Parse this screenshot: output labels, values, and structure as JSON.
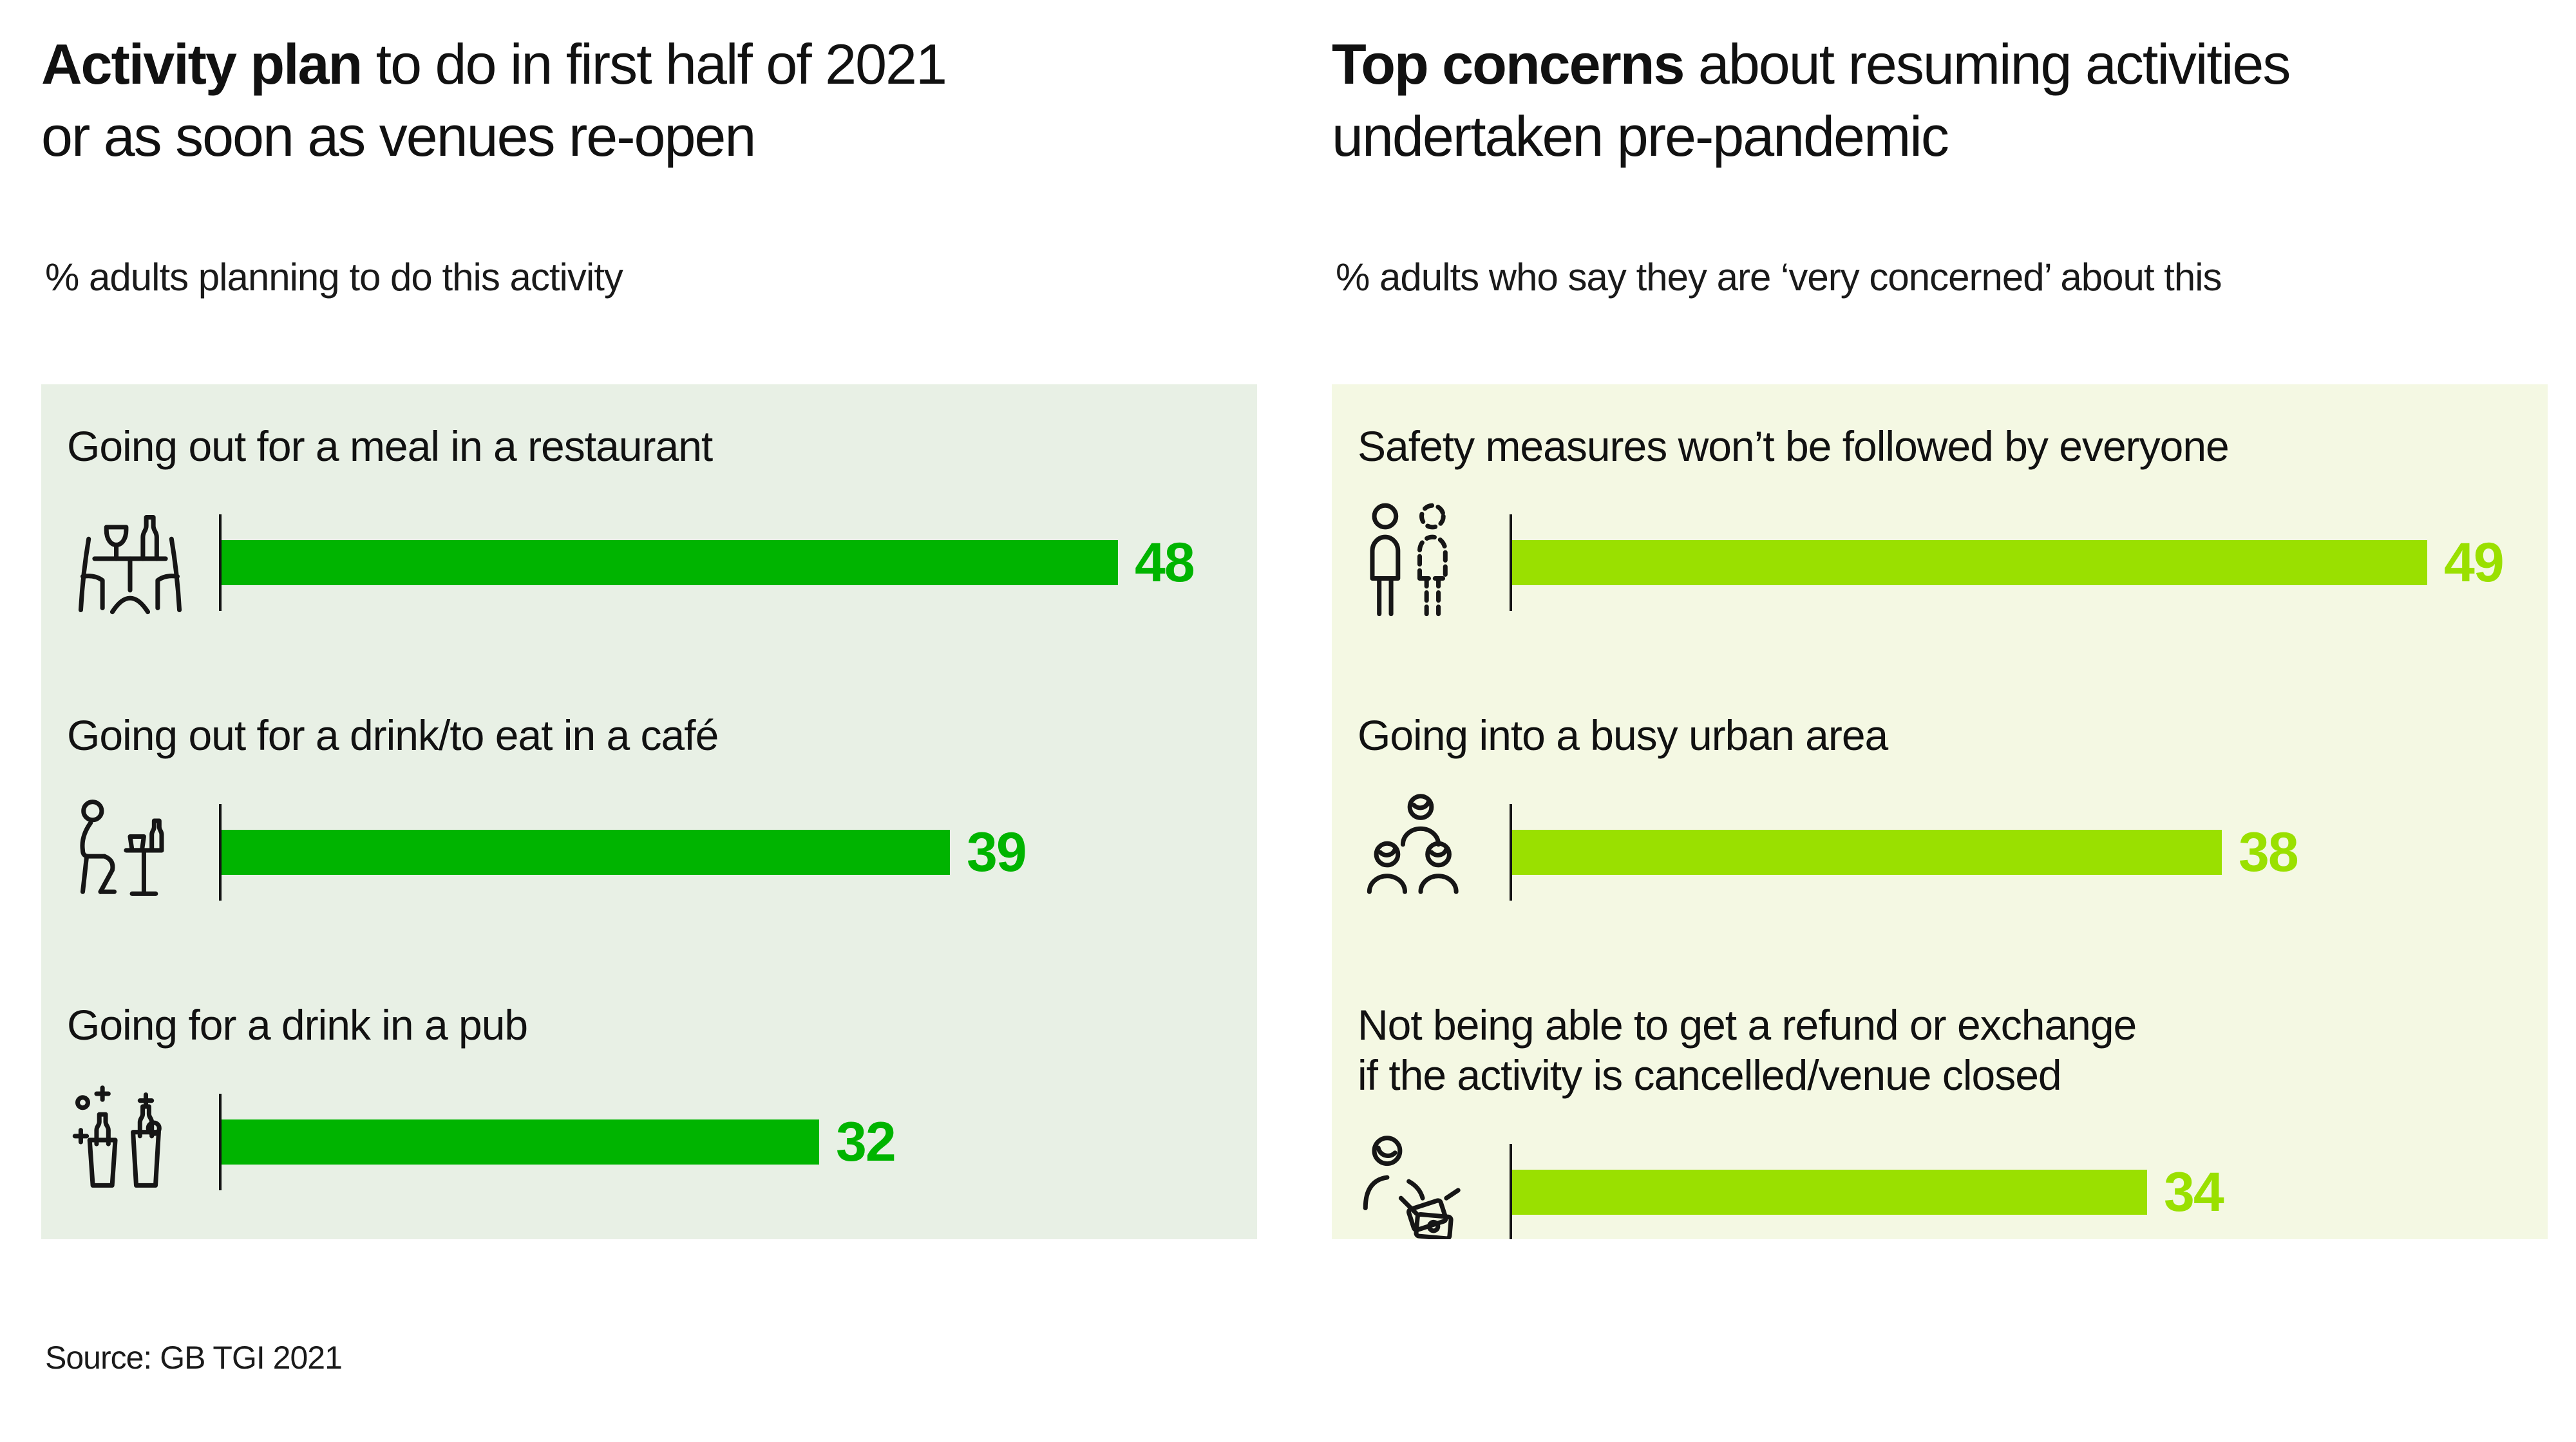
{
  "source": "Source: GB TGI 2021",
  "colors": {
    "left_bar": "#00b400",
    "right_bar": "#9ae000",
    "left_panel_bg": "#e8f0e5",
    "right_panel_bg": "#f4f8e3",
    "text": "#141414"
  },
  "chart_data": [
    {
      "type": "bar",
      "orientation": "horizontal",
      "title_bold": "Activity plan",
      "title_rest": " to do in first half of 2021\nor as soon as venues re-open",
      "subtitle": "% adults planning to do this activity",
      "categories": [
        "Going out for a meal in a restaurant",
        "Going out for a drink/to eat in a café",
        "Going for a drink in a pub"
      ],
      "values": [
        48,
        39,
        32
      ],
      "value_labels_shown": true,
      "bar_color": "#00b400",
      "panel_bg": "#e8f0e5",
      "icons": [
        "restaurant-table-icon",
        "cafe-person-icon",
        "pub-drinks-icon"
      ],
      "xlim": [
        0,
        55
      ],
      "grid": false,
      "legend": false
    },
    {
      "type": "bar",
      "orientation": "horizontal",
      "title_bold": "Top concerns",
      "title_rest": " about resuming activities\nundertaken pre-pandemic",
      "subtitle": "% adults who say they are ‘very concerned’ about this",
      "categories": [
        "Safety measures won’t be followed by everyone",
        "Going into a busy urban area",
        "Not being able to get a refund or exchange\nif the activity is cancelled/venue closed"
      ],
      "values": [
        49,
        38,
        34
      ],
      "value_labels_shown": true,
      "bar_color": "#9ae000",
      "panel_bg": "#f4f8e3",
      "icons": [
        "people-pair-icon",
        "crowd-icon",
        "refund-person-icon"
      ],
      "xlim": [
        0,
        55
      ],
      "grid": false,
      "legend": false
    }
  ]
}
